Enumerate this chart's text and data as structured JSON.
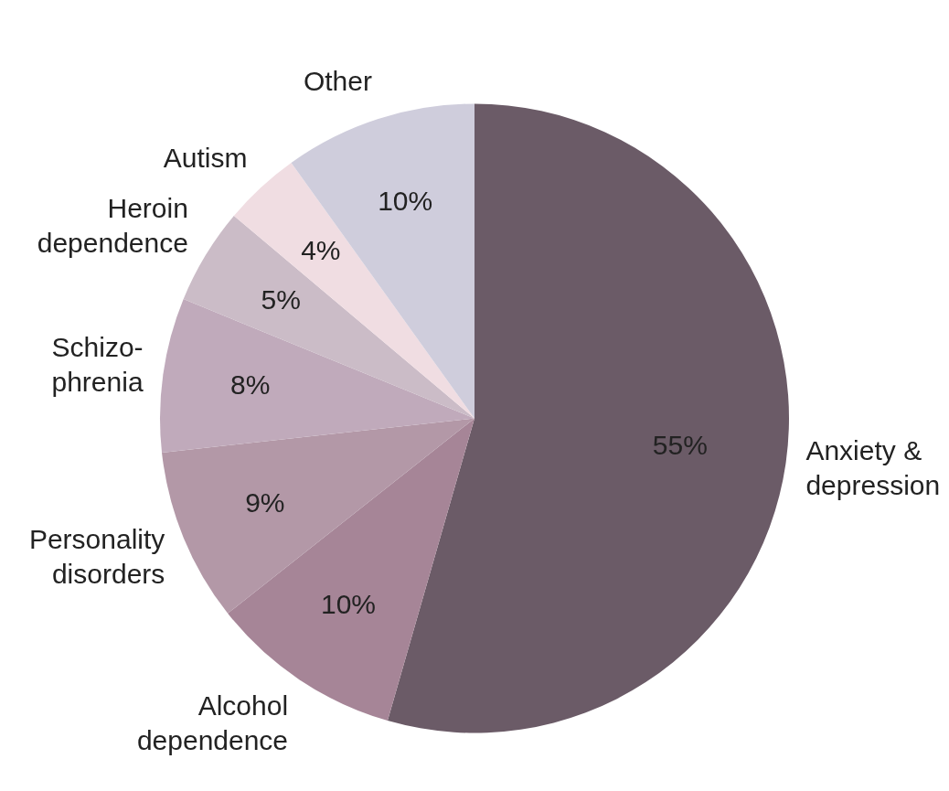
{
  "chart_data": {
    "type": "pie",
    "categories": [
      "Anxiety & depression",
      "Alcohol dependence",
      "Personality disorders",
      "Schizo-phrenia",
      "Heroin dependence",
      "Autism",
      "Other"
    ],
    "values": [
      55,
      10,
      9,
      8,
      5,
      4,
      10
    ],
    "colors": [
      "#6b5b67",
      "#a68597",
      "#b398a7",
      "#c0aabb",
      "#cbbcc7",
      "#f0dde2",
      "#cfcddc"
    ],
    "value_labels": [
      "55%",
      "10%",
      "9%",
      "8%",
      "5%",
      "4%",
      "10%"
    ],
    "legend": false
  }
}
